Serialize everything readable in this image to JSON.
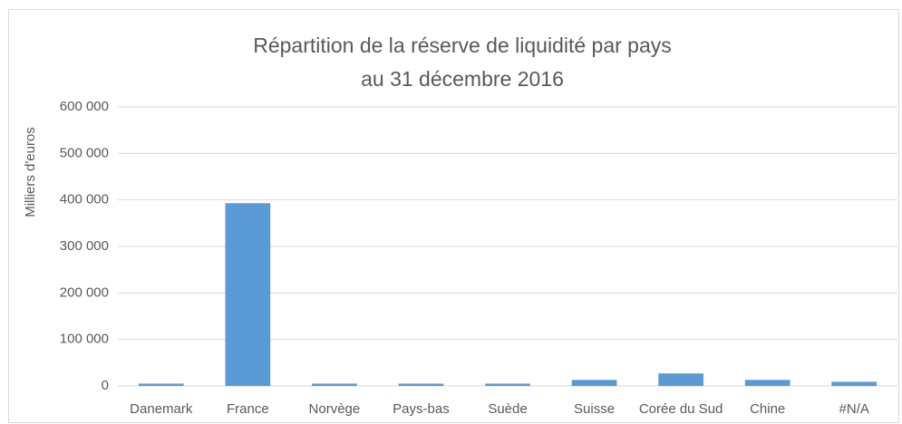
{
  "chart_data": {
    "type": "bar",
    "title": [
      "Répartition de la réserve de liquidité par pays",
      "au 31 décembre 2016"
    ],
    "y_label": "Milliers d'euros",
    "categories": [
      "Danemark",
      "France",
      "Norvège",
      "Pays-bas",
      "Suède",
      "Suisse",
      "Corée du Sud",
      "Chine",
      "#N/A"
    ],
    "values": [
      5000,
      393000,
      5000,
      5000,
      5000,
      13000,
      27000,
      13000,
      9000
    ],
    "color": "#5b9bd5",
    "ylim": [
      0,
      600000
    ],
    "yticks": [
      0,
      {
        "value": 100000,
        "label": "100 000"
      },
      {
        "value": 200000,
        "label": "200 000"
      },
      {
        "value": 300000,
        "label": "300 000"
      },
      {
        "value": 400000,
        "label": "400 000"
      },
      {
        "value": 500000,
        "label": "500 000"
      },
      {
        "value": 600000,
        "label": "600 000"
      }
    ],
    "grid": true
  }
}
